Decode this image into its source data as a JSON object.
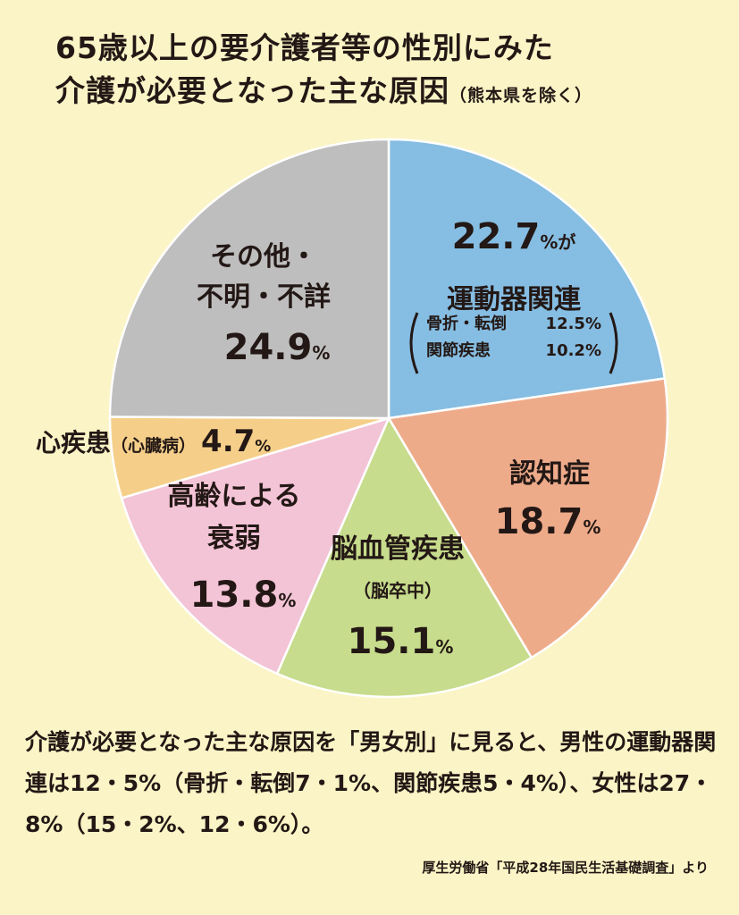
{
  "title": {
    "line1": "65歳以上の要介護者等の性別にみた",
    "line2": "介護が必要となった主な原因",
    "note": "（熊本県を除く）"
  },
  "chart_data": {
    "type": "pie",
    "title": "65歳以上の要介護者等の性別にみた介護が必要となった主な原因（熊本県を除く）",
    "unit": "%",
    "slices": [
      {
        "id": "motor",
        "pct": "22.7",
        "value": 22.7,
        "suffix": "%が",
        "label_lines": [
          "運動器関連"
        ],
        "breakdown": [
          {
            "name": "骨折・転倒",
            "value": "12.5%"
          },
          {
            "name": "関節疾患",
            "value": "10.2%"
          }
        ],
        "color": "#86bde2"
      },
      {
        "id": "dementia",
        "pct": "18.7",
        "value": 18.7,
        "suffix": "%",
        "label_lines": [
          "認知症"
        ],
        "color": "#eeab8a"
      },
      {
        "id": "stroke",
        "pct": "15.1",
        "value": 15.1,
        "suffix": "%",
        "label_lines": [
          "脳血管疾患",
          "（脳卒中）"
        ],
        "color": "#c7dc8c"
      },
      {
        "id": "frailty",
        "pct": "13.8",
        "value": 13.8,
        "suffix": "%",
        "label_lines": [
          "高齢による",
          "衰弱"
        ],
        "color": "#f3c3d6"
      },
      {
        "id": "heart",
        "pct": "4.7",
        "value": 4.7,
        "suffix": "%",
        "label_lines": [
          "心疾患",
          "（心臓病）"
        ],
        "color": "#f5cf8a"
      },
      {
        "id": "other",
        "pct": "24.9",
        "value": 24.9,
        "suffix": "%",
        "label_lines": [
          "その他・",
          "不明・不詳"
        ],
        "color": "#bebebe"
      }
    ]
  },
  "description": "介護が必要となった主な原因を「男女別」に見ると、男性の運動器関連は12・5%（骨折・転倒7・1%、関節疾患5・4%）、女性は27・8%（15・2%、12・6%）。",
  "source": "厚生労働省「平成28年国民生活基礎調査」より"
}
